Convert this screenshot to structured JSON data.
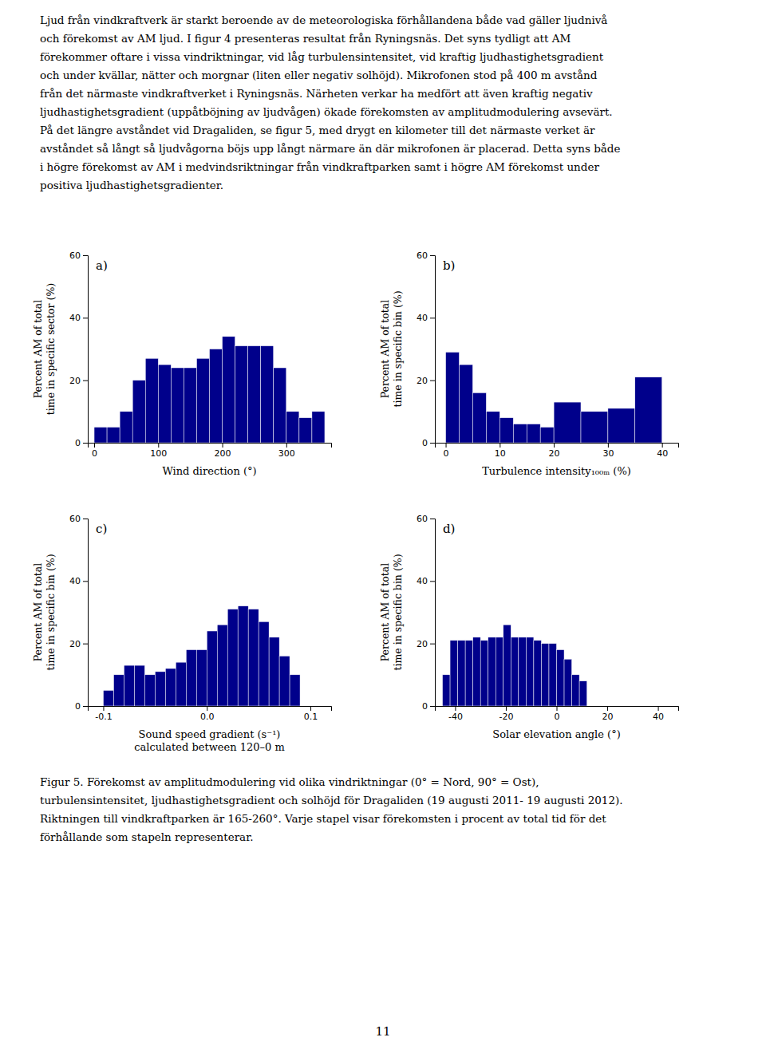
{
  "text_top": [
    "Ljud från vindkraftverk är starkt beroende av de meteorologiska förhållandena både vad gäller ljudnivå",
    "och förekomst av AM ljud. I figur 4 presenteras resultat från Ryningsnäs. Det syns tydligt att AM",
    "förekommer oftare i vissa vindriktningar, vid låg turbulensintensitet, vid kraftig ljudhastighetsgradient",
    "och under kvällar, nätter och morgnar (liten eller negativ solhöjd). Mikrofonen stod på 400 m avstånd",
    "från det närmaste vindkraftverket i Ryningsnäs. Närheten verkar ha medfört att även kraftig negativ",
    "ljudhastighetsgradient (uppåtböjning av ljudvågen) ökade förekomsten av amplitudmodulering avsevärt.",
    "På det längre avståndet vid Dragaliden, se figur 5, med drygt en kilometer till det närmaste verket är",
    "avståndet så långt så ljudvågorna böjs upp långt närmare än där mikrofonen är placerad. Detta syns både",
    "i högre förekomst av AM i medvindsriktningar från vindkraftparken samt i högre AM förekomst under",
    "positiva ljudhastighetsgradienter."
  ],
  "caption": [
    "Figur 5. Förekomst av amplitudmodulering vid olika vindriktningar (0° = Nord, 90° = Ost),",
    "turbulensintensitet, ljudhastighetsgradient och solhöjd för Dragaliden (19 augusti 2011- 19 augusti 2012).",
    "Riktningen till vindkraftparken är 165-260°. Varje stapel visar förekomsten i procent av total tid för det",
    "förhållande som stapeln representerar."
  ],
  "page_number": "11",
  "chart_data": [
    {
      "type": "histogram",
      "title": "a)",
      "values": [
        5,
        5,
        10,
        20,
        27,
        25,
        24,
        24,
        27,
        30,
        34,
        31,
        31,
        31,
        24,
        10,
        8,
        10
      ],
      "bins": [
        0,
        20,
        40,
        60,
        80,
        100,
        120,
        140,
        160,
        180,
        200,
        220,
        240,
        260,
        280,
        300,
        320,
        340,
        360
      ],
      "color": "#00008B",
      "x_label": "Wind direction (°)",
      "y_label": "Percent AM of total\ntime in specific sector (%)",
      "xlim": [
        -10,
        370
      ],
      "ylim": [
        0,
        60
      ],
      "xticks": [
        0,
        100,
        200,
        300
      ],
      "yticks": [
        0,
        20,
        40,
        60
      ],
      "grid": false
    },
    {
      "type": "histogram",
      "title": "b)",
      "values": [
        29,
        25,
        16,
        10,
        8,
        6,
        6,
        5,
        13,
        10,
        11,
        21
      ],
      "bins": [
        0,
        2.5,
        5,
        7.5,
        10,
        12.5,
        15,
        17.5,
        20,
        25,
        30,
        35,
        40
      ],
      "color": "#00008B",
      "x_label": "Turbulence intensity₁₀₀ₘ (%)",
      "y_label": "Percent AM of total\ntime in specific bin (%)",
      "xlim": [
        -2,
        43
      ],
      "ylim": [
        0,
        60
      ],
      "xticks": [
        0,
        10,
        20,
        30,
        40
      ],
      "yticks": [
        0,
        20,
        40,
        60
      ],
      "grid": false
    },
    {
      "type": "histogram",
      "title": "c)",
      "values": [
        5,
        10,
        13,
        13,
        10,
        11,
        12,
        14,
        18,
        18,
        24,
        26,
        31,
        32,
        31,
        27,
        22,
        16,
        10
      ],
      "bins": [
        -0.1,
        -0.09,
        -0.08,
        -0.07,
        -0.06,
        -0.05,
        -0.04,
        -0.03,
        -0.02,
        -0.01,
        0,
        0.01,
        0.02,
        0.03,
        0.04,
        0.05,
        0.06,
        0.07,
        0.08,
        0.09
      ],
      "color": "#00008B",
      "x_label": "Sound speed gradient (s⁻¹)\ncalculated between 120–0 m",
      "y_label": "Percent AM of total\ntime in specific bin (%)",
      "xlim": [
        -0.115,
        0.12
      ],
      "ylim": [
        0,
        60
      ],
      "xticks": [
        -0.1,
        {
          "value": 0,
          "label": "0.0"
        },
        0.1
      ],
      "yticks": [
        0,
        20,
        40,
        60
      ],
      "grid": false
    },
    {
      "type": "histogram",
      "title": "d)",
      "values": [
        10,
        21,
        21,
        21,
        22,
        21,
        22,
        22,
        26,
        22,
        22,
        22,
        21,
        20,
        20,
        18,
        15,
        10,
        8
      ],
      "bins": [
        -45,
        -42,
        -39,
        -36,
        -33,
        -30,
        -27,
        -24,
        -21,
        -18,
        -15,
        -12,
        -9,
        -6,
        -3,
        0,
        3,
        6,
        9,
        12
      ],
      "color": "#00008B",
      "x_label": "Solar elevation angle (°)",
      "y_label": "Percent AM of total\ntime in specific bin (%)",
      "xlim": [
        -48,
        48
      ],
      "ylim": [
        0,
        60
      ],
      "xticks": [
        -40,
        -20,
        0,
        20,
        40
      ],
      "yticks": [
        0,
        20,
        40,
        60
      ],
      "grid": false
    }
  ]
}
